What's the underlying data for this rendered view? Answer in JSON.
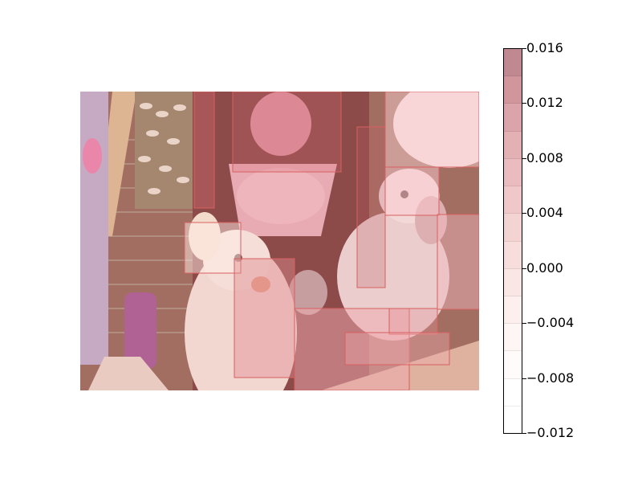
{
  "colorbar": {
    "tick_labels": [
      "0.016",
      "0.012",
      "0.008",
      "0.004",
      "0.000",
      "−0.004",
      "−0.008",
      "−0.012"
    ],
    "levels": [
      "#c08890",
      "#d0969c",
      "#daa4aa",
      "#e3b0b4",
      "#eabcbf",
      "#f0c8c9",
      "#f4d4d3",
      "#f7dddc",
      "#fae6e4",
      "#fcefed",
      "#fdf6f5",
      "#fefbfa",
      "#ffffff",
      "#ffffff"
    ]
  },
  "image": {
    "subject": "two white cockatiels in a cage with sunflower seed treat, rope toy, and bell",
    "heatmap_overlay": "pinkish-red attribution regions"
  }
}
